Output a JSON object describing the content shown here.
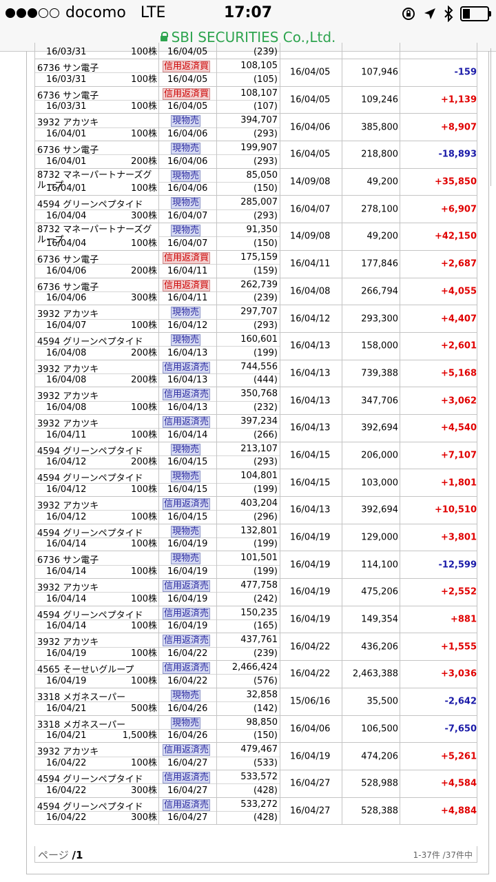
{
  "status": {
    "carrier": "docomo",
    "network": "LTE",
    "time": "17:07"
  },
  "url": {
    "site": "SBI SECURITIES Co.,Ltd."
  },
  "partial_row": {
    "buy_date": "16/03/31",
    "qty": "100株",
    "sell_date": "16/04/05",
    "fee": "(239)"
  },
  "rows": [
    {
      "name": "6736 サン電子",
      "buy_date": "16/03/31",
      "qty": "100株",
      "type": "信用返済買",
      "type_class": "kaimodoshi",
      "sell_date": "16/04/05",
      "amount": "108,105",
      "fee": "(105)",
      "acq_date": "16/04/05",
      "acq_price": "107,946",
      "pl": "-159",
      "sign": "neg"
    },
    {
      "name": "6736 サン電子",
      "buy_date": "16/03/31",
      "qty": "100株",
      "type": "信用返済買",
      "type_class": "kaimodoshi",
      "sell_date": "16/04/05",
      "amount": "108,107",
      "fee": "(107)",
      "acq_date": "16/04/05",
      "acq_price": "109,246",
      "pl": "+1,139",
      "sign": "pos"
    },
    {
      "name": "3932 アカツキ",
      "buy_date": "16/04/01",
      "qty": "100株",
      "type": "現物売",
      "type_class": "genbutsu",
      "sell_date": "16/04/06",
      "amount": "394,707",
      "fee": "(293)",
      "acq_date": "16/04/06",
      "acq_price": "385,800",
      "pl": "+8,907",
      "sign": "pos"
    },
    {
      "name": "6736 サン電子",
      "buy_date": "16/04/01",
      "qty": "200株",
      "type": "現物売",
      "type_class": "genbutsu",
      "sell_date": "16/04/06",
      "amount": "199,907",
      "fee": "(293)",
      "acq_date": "16/04/05",
      "acq_price": "218,800",
      "pl": "-18,893",
      "sign": "neg"
    },
    {
      "name": "8732 マネーパートナーズグループ",
      "wrap": true,
      "buy_date": "16/04/01",
      "qty": "100株",
      "type": "現物売",
      "type_class": "genbutsu",
      "sell_date": "16/04/06",
      "amount": "85,050",
      "fee": "(150)",
      "acq_date": "14/09/08",
      "acq_price": "49,200",
      "pl": "+35,850",
      "sign": "pos"
    },
    {
      "name": "4594 グリーンペプタイド",
      "buy_date": "16/04/04",
      "qty": "300株",
      "type": "現物売",
      "type_class": "genbutsu",
      "sell_date": "16/04/07",
      "amount": "285,007",
      "fee": "(293)",
      "acq_date": "16/04/07",
      "acq_price": "278,100",
      "pl": "+6,907",
      "sign": "pos"
    },
    {
      "name": "8732 マネーパートナーズグループ",
      "wrap": true,
      "buy_date": "16/04/04",
      "qty": "100株",
      "type": "現物売",
      "type_class": "genbutsu",
      "sell_date": "16/04/07",
      "amount": "91,350",
      "fee": "(150)",
      "acq_date": "14/09/08",
      "acq_price": "49,200",
      "pl": "+42,150",
      "sign": "pos"
    },
    {
      "name": "6736 サン電子",
      "buy_date": "16/04/06",
      "qty": "200株",
      "type": "信用返済買",
      "type_class": "kaimodoshi",
      "sell_date": "16/04/11",
      "amount": "175,159",
      "fee": "(159)",
      "acq_date": "16/04/11",
      "acq_price": "177,846",
      "pl": "+2,687",
      "sign": "pos"
    },
    {
      "name": "6736 サン電子",
      "buy_date": "16/04/06",
      "qty": "300株",
      "type": "信用返済買",
      "type_class": "kaimodoshi",
      "sell_date": "16/04/11",
      "amount": "262,739",
      "fee": "(239)",
      "acq_date": "16/04/08",
      "acq_price": "266,794",
      "pl": "+4,055",
      "sign": "pos"
    },
    {
      "name": "3932 アカツキ",
      "buy_date": "16/04/07",
      "qty": "100株",
      "type": "現物売",
      "type_class": "genbutsu",
      "sell_date": "16/04/12",
      "amount": "297,707",
      "fee": "(293)",
      "acq_date": "16/04/12",
      "acq_price": "293,300",
      "pl": "+4,407",
      "sign": "pos"
    },
    {
      "name": "4594 グリーンペプタイド",
      "buy_date": "16/04/08",
      "qty": "200株",
      "type": "現物売",
      "type_class": "genbutsu",
      "sell_date": "16/04/13",
      "amount": "160,601",
      "fee": "(199)",
      "acq_date": "16/04/13",
      "acq_price": "158,000",
      "pl": "+2,601",
      "sign": "pos"
    },
    {
      "name": "3932 アカツキ",
      "buy_date": "16/04/08",
      "qty": "200株",
      "type": "信用返済売",
      "type_class": "henuri",
      "sell_date": "16/04/13",
      "amount": "744,556",
      "fee": "(444)",
      "acq_date": "16/04/13",
      "acq_price": "739,388",
      "pl": "+5,168",
      "sign": "pos"
    },
    {
      "name": "3932 アカツキ",
      "buy_date": "16/04/08",
      "qty": "100株",
      "type": "信用返済売",
      "type_class": "henuri",
      "sell_date": "16/04/13",
      "amount": "350,768",
      "fee": "(232)",
      "acq_date": "16/04/13",
      "acq_price": "347,706",
      "pl": "+3,062",
      "sign": "pos"
    },
    {
      "name": "3932 アカツキ",
      "buy_date": "16/04/11",
      "qty": "100株",
      "type": "信用返済売",
      "type_class": "henuri",
      "sell_date": "16/04/14",
      "amount": "397,234",
      "fee": "(266)",
      "acq_date": "16/04/13",
      "acq_price": "392,694",
      "pl": "+4,540",
      "sign": "pos"
    },
    {
      "name": "4594 グリーンペプタイド",
      "buy_date": "16/04/12",
      "qty": "200株",
      "type": "現物売",
      "type_class": "genbutsu",
      "sell_date": "16/04/15",
      "amount": "213,107",
      "fee": "(293)",
      "acq_date": "16/04/15",
      "acq_price": "206,000",
      "pl": "+7,107",
      "sign": "pos"
    },
    {
      "name": "4594 グリーンペプタイド",
      "buy_date": "16/04/12",
      "qty": "100株",
      "type": "現物売",
      "type_class": "genbutsu",
      "sell_date": "16/04/15",
      "amount": "104,801",
      "fee": "(199)",
      "acq_date": "16/04/15",
      "acq_price": "103,000",
      "pl": "+1,801",
      "sign": "pos"
    },
    {
      "name": "3932 アカツキ",
      "buy_date": "16/04/12",
      "qty": "100株",
      "type": "信用返済売",
      "type_class": "henuri",
      "sell_date": "16/04/15",
      "amount": "403,204",
      "fee": "(296)",
      "acq_date": "16/04/13",
      "acq_price": "392,694",
      "pl": "+10,510",
      "sign": "pos"
    },
    {
      "name": "4594 グリーンペプタイド",
      "buy_date": "16/04/14",
      "qty": "100株",
      "type": "現物売",
      "type_class": "genbutsu",
      "sell_date": "16/04/19",
      "amount": "132,801",
      "fee": "(199)",
      "acq_date": "16/04/19",
      "acq_price": "129,000",
      "pl": "+3,801",
      "sign": "pos"
    },
    {
      "name": "6736 サン電子",
      "buy_date": "16/04/14",
      "qty": "100株",
      "type": "現物売",
      "type_class": "genbutsu",
      "sell_date": "16/04/19",
      "amount": "101,501",
      "fee": "(199)",
      "acq_date": "16/04/19",
      "acq_price": "114,100",
      "pl": "-12,599",
      "sign": "neg"
    },
    {
      "name": "3932 アカツキ",
      "buy_date": "16/04/14",
      "qty": "100株",
      "type": "信用返済売",
      "type_class": "henuri",
      "sell_date": "16/04/19",
      "amount": "477,758",
      "fee": "(242)",
      "acq_date": "16/04/19",
      "acq_price": "475,206",
      "pl": "+2,552",
      "sign": "pos"
    },
    {
      "name": "4594 グリーンペプタイド",
      "buy_date": "16/04/14",
      "qty": "100株",
      "type": "信用返済売",
      "type_class": "henuri",
      "sell_date": "16/04/19",
      "amount": "150,235",
      "fee": "(165)",
      "acq_date": "16/04/19",
      "acq_price": "149,354",
      "pl": "+881",
      "sign": "pos"
    },
    {
      "name": "3932 アカツキ",
      "buy_date": "16/04/19",
      "qty": "100株",
      "type": "信用返済売",
      "type_class": "henuri",
      "sell_date": "16/04/22",
      "amount": "437,761",
      "fee": "(239)",
      "acq_date": "16/04/22",
      "acq_price": "436,206",
      "pl": "+1,555",
      "sign": "pos"
    },
    {
      "name": "4565 そーせいグループ",
      "buy_date": "16/04/19",
      "qty": "100株",
      "type": "信用返済売",
      "type_class": "henuri",
      "sell_date": "16/04/22",
      "amount": "2,466,424",
      "fee": "(576)",
      "acq_date": "16/04/22",
      "acq_price": "2,463,388",
      "pl": "+3,036",
      "sign": "pos"
    },
    {
      "name": "3318 メガネスーパー",
      "buy_date": "16/04/21",
      "qty": "500株",
      "type": "現物売",
      "type_class": "genbutsu",
      "sell_date": "16/04/26",
      "amount": "32,858",
      "fee": "(142)",
      "acq_date": "15/06/16",
      "acq_price": "35,500",
      "pl": "-2,642",
      "sign": "neg"
    },
    {
      "name": "3318 メガネスーパー",
      "buy_date": "16/04/21",
      "qty": "1,500株",
      "type": "現物売",
      "type_class": "genbutsu",
      "sell_date": "16/04/26",
      "amount": "98,850",
      "fee": "(150)",
      "acq_date": "16/04/06",
      "acq_price": "106,500",
      "pl": "-7,650",
      "sign": "neg"
    },
    {
      "name": "3932 アカツキ",
      "buy_date": "16/04/22",
      "qty": "100株",
      "type": "信用返済売",
      "type_class": "henuri",
      "sell_date": "16/04/27",
      "amount": "479,467",
      "fee": "(533)",
      "acq_date": "16/04/19",
      "acq_price": "474,206",
      "pl": "+5,261",
      "sign": "pos"
    },
    {
      "name": "4594 グリーンペプタイド",
      "buy_date": "16/04/22",
      "qty": "300株",
      "type": "信用返済売",
      "type_class": "henuri",
      "sell_date": "16/04/27",
      "amount": "533,572",
      "fee": "(428)",
      "acq_date": "16/04/27",
      "acq_price": "528,988",
      "pl": "+4,584",
      "sign": "pos"
    },
    {
      "name": "4594 グリーンペプタイド",
      "buy_date": "16/04/22",
      "qty": "300株",
      "type": "信用返済売",
      "type_class": "henuri",
      "sell_date": "16/04/27",
      "amount": "533,272",
      "fee": "(428)",
      "acq_date": "16/04/27",
      "acq_price": "528,388",
      "pl": "+4,884",
      "sign": "pos"
    }
  ],
  "footer": {
    "page_label": "ページ",
    "page_current": "/1",
    "count": "1-37件 /37件中"
  },
  "colors": {
    "profit": "#e00000",
    "loss": "#1a1aa8",
    "ssl_green": "#2ea44f"
  }
}
